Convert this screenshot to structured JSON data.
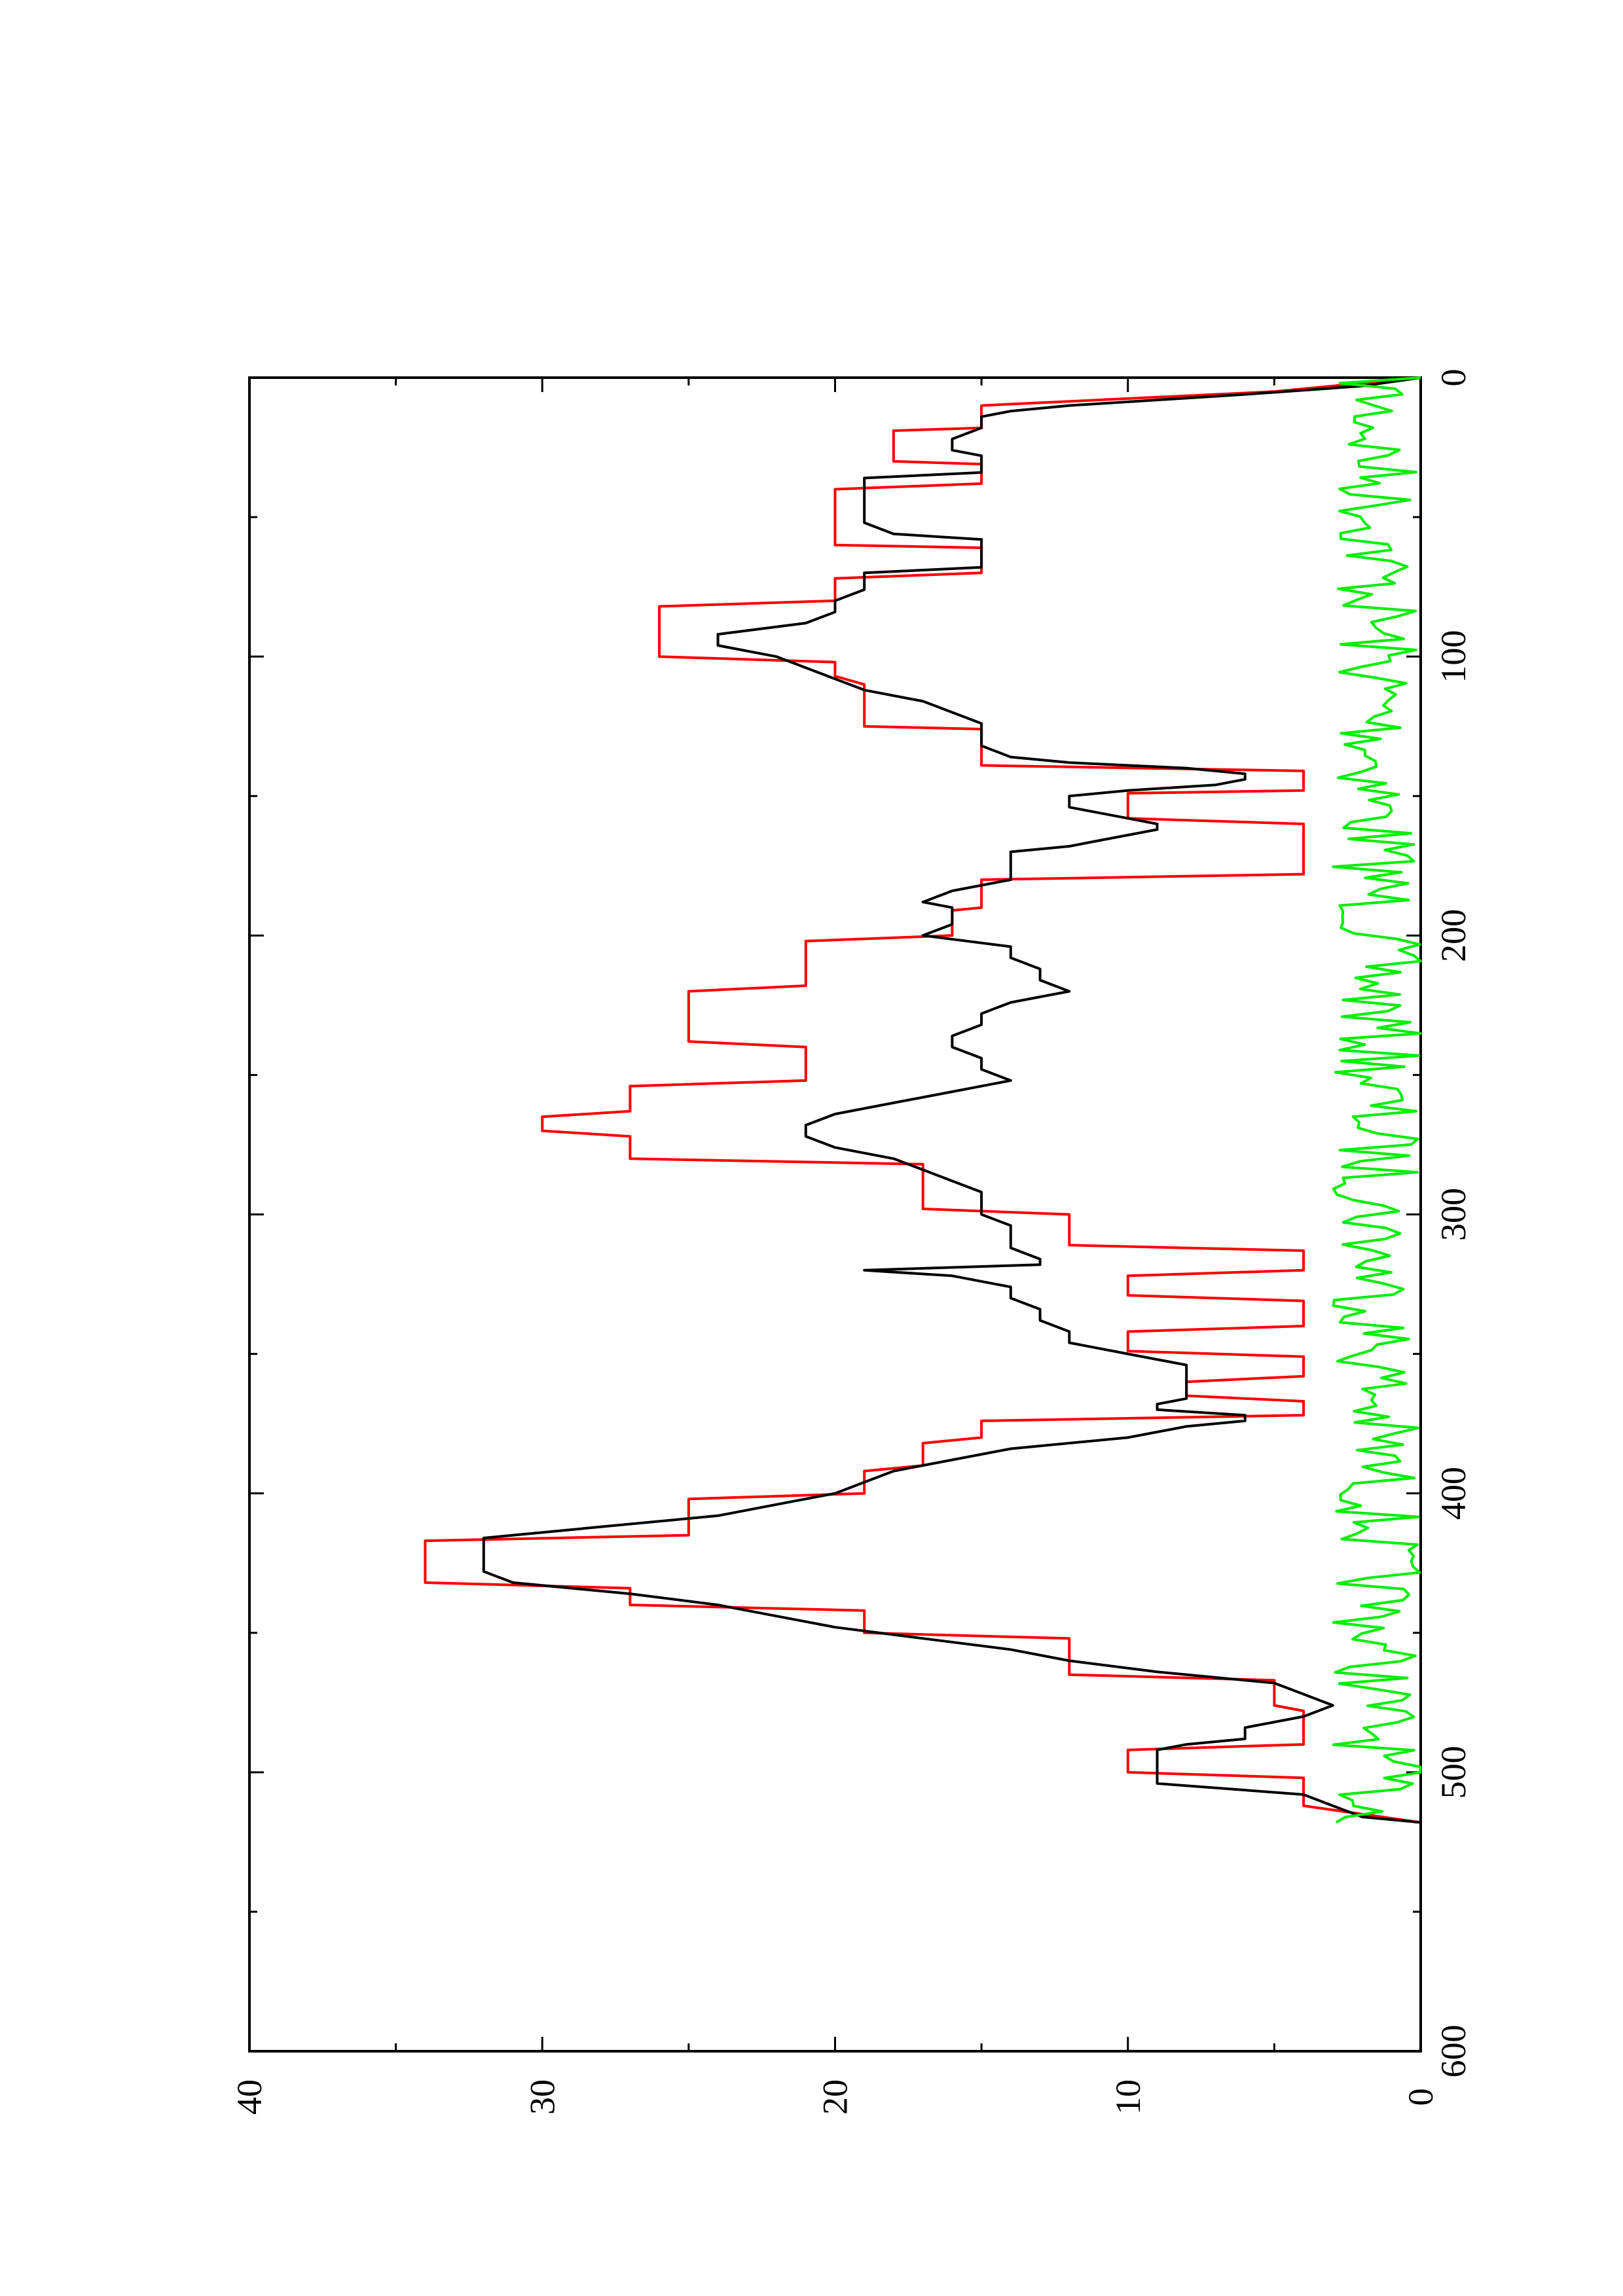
{
  "chart_data": {
    "type": "line",
    "orientation": "rotated 90° counter-clockwise (landscape plot on portrait page)",
    "title": "",
    "xlabel": "",
    "ylabel": "",
    "xlim": [
      0,
      600
    ],
    "ylim": [
      0,
      40
    ],
    "x_ticks": [
      0,
      100,
      200,
      300,
      400,
      500,
      600
    ],
    "x_tick_labels": [
      "0",
      "100",
      "200",
      "300",
      "400",
      "500",
      "600"
    ],
    "x_minor_ticks": [
      50,
      150,
      250,
      350,
      450,
      550
    ],
    "y_ticks": [
      0,
      10,
      20,
      30,
      40
    ],
    "y_tick_labels": [
      "0",
      "10",
      "20",
      "30",
      "40"
    ],
    "y_minor_ticks": [
      5,
      15,
      25,
      35
    ],
    "grid": false,
    "legend": "none",
    "series": [
      {
        "color": "#ff0000",
        "style": "step",
        "x": [
          0,
          5,
          10,
          18,
          19,
          30,
          31,
          38,
          40,
          60,
          61,
          70,
          72,
          80,
          82,
          100,
          102,
          107,
          110,
          125,
          126,
          139,
          141,
          148,
          149,
          158,
          160,
          178,
          180,
          190,
          191,
          200,
          202,
          218,
          220,
          238,
          240,
          252,
          254,
          263,
          265,
          270,
          272,
          280,
          282,
          298,
          300,
          311,
          313,
          320,
          322,
          329,
          331,
          340,
          342,
          349,
          351,
          358,
          360,
          365,
          367,
          372,
          374,
          380,
          382,
          390,
          392,
          400,
          402,
          415,
          417,
          432,
          434,
          440,
          442,
          450,
          452,
          465,
          467,
          476,
          478,
          490,
          492,
          500,
          502,
          510,
          512,
          518
        ],
        "y": [
          0,
          5,
          15,
          15,
          18,
          18,
          15,
          15,
          20,
          20,
          15,
          15,
          20,
          20,
          26,
          26,
          20,
          20,
          19,
          19,
          15,
          15,
          4,
          4,
          10,
          10,
          4,
          4,
          15,
          15,
          16,
          16,
          21,
          21,
          25,
          25,
          21,
          21,
          27,
          27,
          30,
          30,
          27,
          27,
          17,
          17,
          12,
          12,
          4,
          4,
          10,
          10,
          4,
          4,
          10,
          10,
          4,
          4,
          8,
          8,
          4,
          4,
          15,
          15,
          17,
          17,
          19,
          19,
          25,
          25,
          34,
          34,
          27,
          27,
          19,
          19,
          12,
          12,
          5,
          5,
          4,
          4,
          10,
          10,
          4,
          4,
          4,
          0
        ]
      },
      {
        "color": "#000000",
        "style": "line",
        "x": [
          0,
          3,
          6,
          10,
          12,
          14,
          18,
          22,
          24,
          26,
          28,
          30,
          32,
          34,
          36,
          40,
          44,
          48,
          52,
          56,
          58,
          60,
          62,
          64,
          66,
          68,
          70,
          72,
          76,
          80,
          84,
          88,
          92,
          96,
          100,
          104,
          108,
          112,
          116,
          120,
          124,
          128,
          132,
          136,
          138,
          140,
          142,
          144,
          146,
          148,
          150,
          152,
          154,
          156,
          158,
          160,
          162,
          164,
          166,
          168,
          170,
          172,
          174,
          176,
          178,
          180,
          184,
          188,
          190,
          192,
          196,
          200,
          204,
          208,
          212,
          216,
          220,
          224,
          228,
          232,
          236,
          240,
          244,
          248,
          252,
          256,
          260,
          264,
          268,
          272,
          276,
          280,
          284,
          288,
          292,
          296,
          300,
          304,
          308,
          312,
          316,
          318,
          320,
          322,
          326,
          330,
          334,
          338,
          342,
          346,
          350,
          354,
          358,
          362,
          366,
          368,
          370,
          372,
          374,
          376,
          380,
          384,
          388,
          392,
          396,
          400,
          404,
          408,
          412,
          416,
          420,
          424,
          428,
          432,
          436,
          440,
          444,
          448,
          452,
          456,
          460,
          464,
          468,
          472,
          476,
          480,
          484,
          488,
          490,
          492,
          496,
          500,
          504,
          508,
          512,
          516,
          518
        ],
        "y": [
          0,
          2,
          6,
          12,
          14,
          15,
          15,
          16,
          16,
          16,
          15,
          15,
          15,
          15,
          19,
          19,
          19,
          19,
          19,
          18,
          15,
          15,
          15,
          15,
          15,
          15,
          19,
          19,
          19,
          20,
          20,
          21,
          24,
          24,
          22,
          21,
          20,
          19,
          17,
          16,
          15,
          15,
          15,
          14,
          12,
          8,
          6,
          6,
          7,
          10,
          12,
          12,
          12,
          11,
          10,
          9,
          9,
          10,
          11,
          12,
          14,
          14,
          14,
          14,
          14,
          14,
          16,
          17,
          16,
          16,
          16,
          17,
          14,
          14,
          13,
          13,
          12,
          14,
          15,
          15,
          16,
          16,
          15,
          15,
          14,
          16,
          18,
          20,
          21,
          21,
          20,
          18,
          17,
          16,
          15,
          15,
          15,
          14,
          14,
          14,
          13,
          13,
          19,
          16,
          14,
          14,
          13,
          13,
          12,
          12,
          10,
          8,
          8,
          8,
          8,
          9,
          9,
          6,
          6,
          8,
          10,
          14,
          16,
          18,
          19,
          20,
          22,
          24,
          28,
          32,
          32,
          32,
          32,
          31,
          27,
          24,
          22,
          20,
          17,
          14,
          12,
          9,
          5,
          4,
          3,
          4,
          6,
          6,
          8,
          9,
          9,
          9,
          9,
          4,
          3,
          2,
          0
        ]
      },
      {
        "color": "#00ee00",
        "style": "line",
        "noise": true,
        "x_range": [
          0,
          518
        ],
        "y_range": [
          0,
          3
        ],
        "samples": 260,
        "seed": 7
      }
    ]
  }
}
